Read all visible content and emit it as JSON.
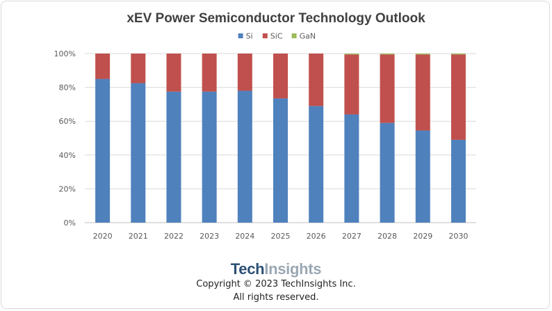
{
  "chart_data": {
    "type": "bar",
    "stacked": true,
    "title": "xEV Power Semiconductor Technology Outlook",
    "categories": [
      "2020",
      "2021",
      "2022",
      "2023",
      "2024",
      "2025",
      "2026",
      "2027",
      "2028",
      "2029",
      "2030"
    ],
    "series": [
      {
        "name": "Si",
        "color": "#4f81bd",
        "values": [
          85,
          82.5,
          77.5,
          77.5,
          78,
          73.5,
          69,
          64,
          59,
          54.5,
          49
        ]
      },
      {
        "name": "SiC",
        "color": "#c0504d",
        "values": [
          15,
          17.5,
          22.5,
          22.5,
          22,
          26.5,
          31,
          35.5,
          40.5,
          45,
          50.5
        ]
      },
      {
        "name": "GaN",
        "color": "#9bbb59",
        "values": [
          0,
          0,
          0,
          0,
          0,
          0,
          0,
          0.5,
          0.5,
          0.5,
          0.5
        ]
      }
    ],
    "yticks": [
      "0%",
      "20%",
      "40%",
      "60%",
      "80%",
      "100%"
    ],
    "ylim": [
      0,
      100
    ],
    "legend_position": "top-center",
    "grid": true
  },
  "footer": {
    "logo_part1": "Tech",
    "logo_part2": "Insights",
    "copyright": "Copyright © 2023 TechInsights Inc.",
    "rights": "All rights reserved."
  }
}
